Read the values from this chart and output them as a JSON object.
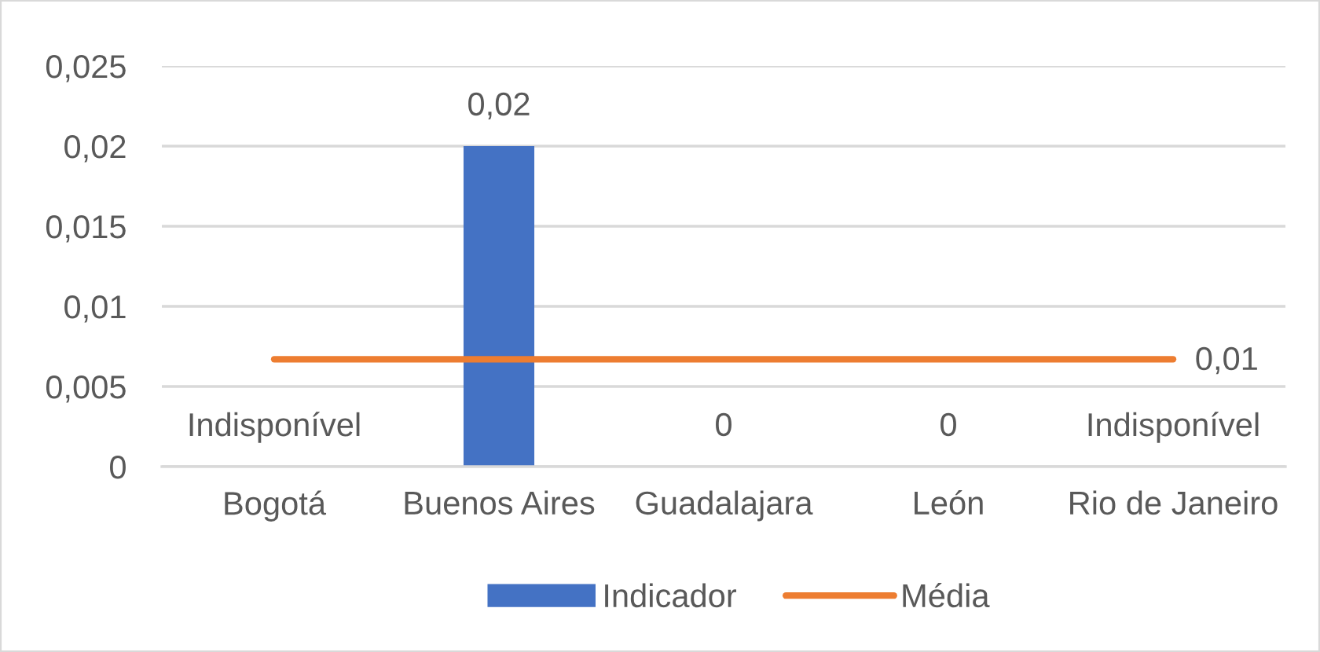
{
  "chart_data": {
    "type": "bar",
    "categories": [
      "Bogotá",
      "Buenos Aires",
      "Guadalajara",
      "León",
      "Rio de Janeiro"
    ],
    "series": [
      {
        "name": "Indicador",
        "color": "#4472c4",
        "values": [
          null,
          0.02,
          0,
          0,
          null
        ],
        "value_labels": [
          "Indisponível",
          "0,02",
          "0",
          "0",
          "Indisponível"
        ]
      },
      {
        "name": "Média",
        "type": "line",
        "color": "#ed7d31",
        "values": [
          0.0067,
          0.0067,
          0.0067,
          0.0067,
          0.0067
        ],
        "value_labels": [
          null,
          null,
          null,
          null,
          "0,01"
        ]
      }
    ],
    "ylim": [
      0,
      0.025
    ],
    "yticks": [
      {
        "value": 0,
        "label": "0"
      },
      {
        "value": 0.005,
        "label": "0,005"
      },
      {
        "value": 0.01,
        "label": "0,01"
      },
      {
        "value": 0.015,
        "label": "0,015"
      },
      {
        "value": 0.02,
        "label": "0,02"
      },
      {
        "value": 0.025,
        "label": "0,025"
      }
    ],
    "grid": "y",
    "legend": "bottom",
    "marker": "none",
    "line_style": "solid"
  }
}
